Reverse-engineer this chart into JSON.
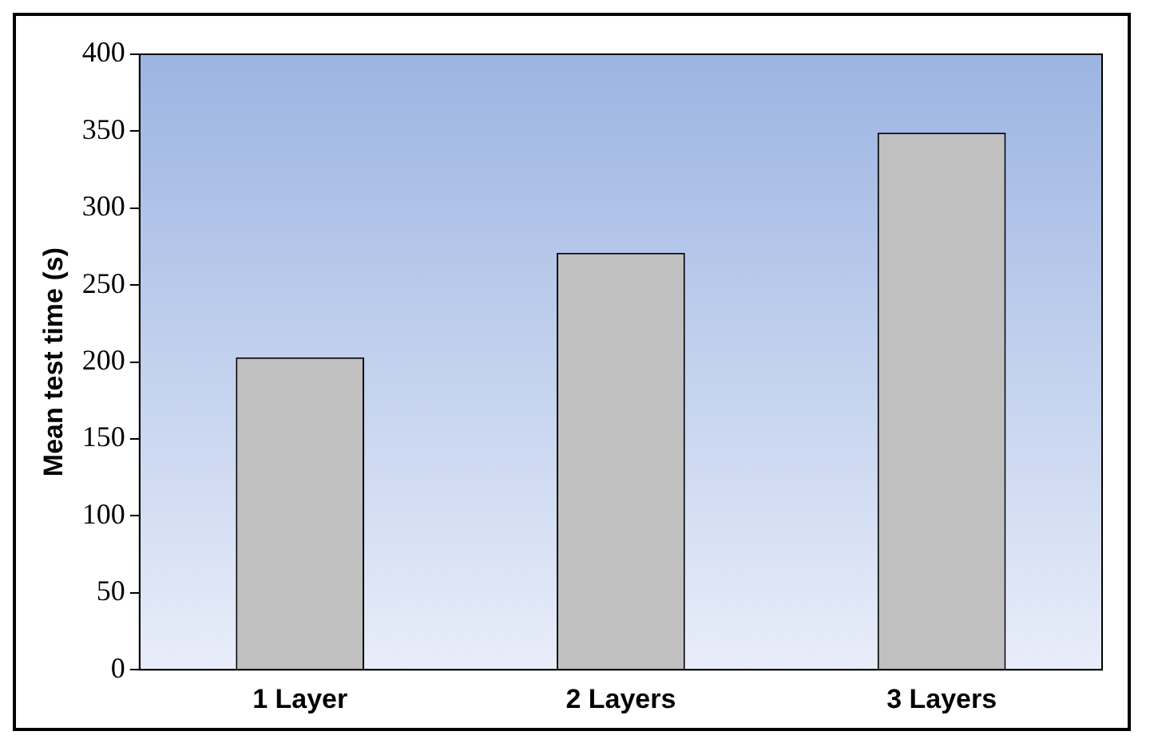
{
  "chart_data": {
    "type": "bar",
    "ylabel": "Mean test time (s)",
    "categories": [
      "1 Layer",
      "2 Layers",
      "3 Layers"
    ],
    "values": [
      203,
      271,
      349
    ],
    "color": "#c0c0c0",
    "ylim": [
      0,
      400
    ],
    "yticks": [
      0,
      50,
      100,
      150,
      200,
      250,
      300,
      350,
      400
    ],
    "grid": false,
    "legend": false
  }
}
